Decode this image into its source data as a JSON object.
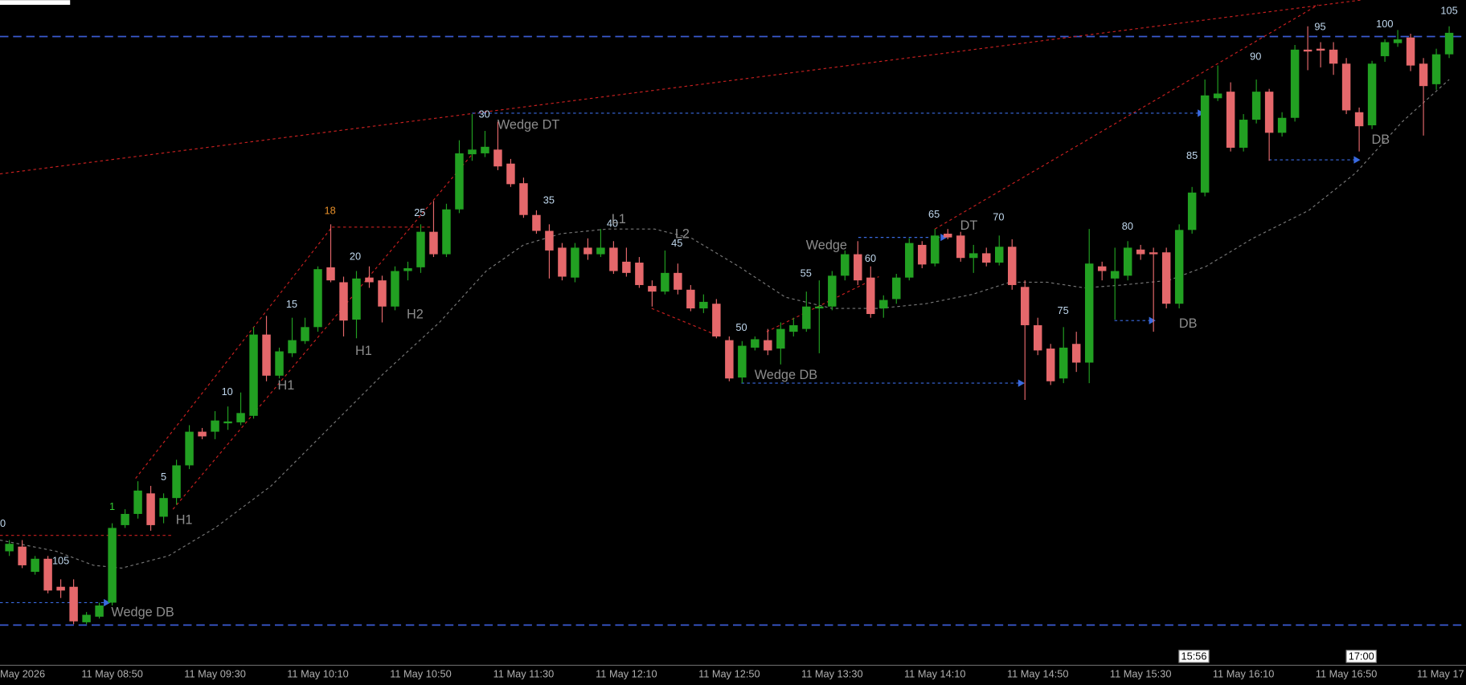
{
  "chart_data": {
    "type": "candlestick",
    "ylim": [
      0,
      712
    ],
    "up_color": "#22a022",
    "down_color": "#e5686b",
    "x_labels": [
      "May 2026",
      "11 May 08:50",
      "11 May 09:30",
      "11 May 10:10",
      "11 May 10:50",
      "11 May 11:30",
      "11 May 12:10",
      "11 May 12:50",
      "11 May 13:30",
      "11 May 14:10",
      "11 May 14:50",
      "11 May 15:30",
      "11 May 16:10",
      "11 May 16:50",
      "11 May 17"
    ],
    "markers": [
      "15:56",
      "17:00"
    ],
    "bar_counts": [
      "0",
      "105",
      "1",
      "5",
      "10",
      "15",
      "18",
      "20",
      "25",
      "30",
      "35",
      "40",
      "45",
      "50",
      "55",
      "60",
      "65",
      "70",
      "75",
      "80",
      "85",
      "90",
      "95",
      "100",
      "105"
    ],
    "pattern_labels": [
      "Wedge DB",
      "H1",
      "H1",
      "H1",
      "H2",
      "Wedge DT",
      "L1",
      "L2",
      "Wedge DB",
      "Wedge",
      "DT",
      "DB",
      "DB"
    ],
    "open": [
      122,
      127,
      100,
      114,
      84,
      84,
      46,
      52,
      67,
      150,
      162,
      184,
      159,
      179,
      214,
      250,
      250,
      259,
      260,
      267,
      354,
      310,
      334,
      347,
      362,
      426,
      410,
      370,
      415,
      412,
      384,
      422,
      426,
      464,
      440,
      488,
      547,
      548,
      552,
      537,
      516,
      482,
      465,
      447,
      415,
      447,
      440,
      447,
      432,
      431,
      406,
      400,
      420,
      402,
      382,
      387,
      348,
      308,
      340,
      348,
      339,
      357,
      360,
      382,
      384,
      417,
      440,
      415,
      382,
      392,
      415,
      450,
      430,
      462,
      460,
      436,
      441,
      431,
      448,
      405,
      364,
      339,
      307,
      344,
      324,
      427,
      414,
      417,
      445,
      442,
      442,
      387,
      466,
      506,
      607,
      614,
      554,
      584,
      614,
      570,
      586,
      659,
      660,
      659,
      644,
      592,
      578,
      652,
      666,
      672,
      644,
      622,
      654
    ],
    "high": [
      134,
      134,
      117,
      117,
      92,
      92,
      57,
      67,
      152,
      167,
      197,
      192,
      184,
      220,
      257,
      254,
      272,
      277,
      292,
      362,
      374,
      340,
      372,
      372,
      427,
      472,
      416,
      422,
      427,
      417,
      427,
      432,
      472,
      497,
      494,
      562,
      590,
      572,
      582,
      542,
      522,
      487,
      472,
      452,
      452,
      457,
      467,
      454,
      447,
      437,
      412,
      444,
      430,
      407,
      397,
      392,
      352,
      347,
      352,
      360,
      367,
      372,
      400,
      412,
      422,
      444,
      454,
      427,
      396,
      419,
      457,
      454,
      467,
      467,
      464,
      450,
      447,
      460,
      456,
      412,
      372,
      344,
      362,
      357,
      467,
      432,
      447,
      454,
      450,
      447,
      447,
      472,
      512,
      627,
      642,
      624,
      590,
      627,
      617,
      592,
      664,
      684,
      667,
      667,
      650,
      597,
      647,
      670,
      680,
      676,
      650,
      660,
      684
    ],
    "low": [
      117,
      104,
      97,
      77,
      72,
      44,
      44,
      50,
      64,
      147,
      157,
      144,
      152,
      172,
      210,
      242,
      242,
      252,
      257,
      264,
      304,
      307,
      330,
      344,
      357,
      410,
      352,
      350,
      404,
      367,
      380,
      412,
      420,
      437,
      437,
      484,
      540,
      544,
      530,
      512,
      479,
      462,
      414,
      412,
      410,
      434,
      437,
      419,
      416,
      404,
      384,
      397,
      397,
      379,
      377,
      350,
      304,
      302,
      337,
      332,
      322,
      352,
      357,
      334,
      380,
      412,
      407,
      372,
      372,
      387,
      412,
      425,
      427,
      456,
      432,
      420,
      427,
      428,
      402,
      284,
      332,
      300,
      302,
      314,
      302,
      412,
      370,
      412,
      434,
      357,
      382,
      382,
      462,
      502,
      604,
      550,
      550,
      580,
      540,
      566,
      582,
      637,
      640,
      632,
      590,
      550,
      574,
      646,
      662,
      636,
      567,
      616,
      650
    ],
    "close": [
      130,
      107,
      114,
      80,
      80,
      47,
      54,
      64,
      147,
      162,
      187,
      150,
      179,
      214,
      250,
      245,
      262,
      261,
      270,
      354,
      310,
      336,
      348,
      362,
      424,
      412,
      369,
      414,
      410,
      384,
      422,
      425,
      464,
      440,
      488,
      548,
      552,
      555,
      534,
      515,
      482,
      465,
      444,
      416,
      447,
      440,
      447,
      422,
      420,
      407,
      400,
      420,
      402,
      382,
      389,
      352,
      307,
      342,
      349,
      337,
      360,
      364,
      384,
      384,
      417,
      440,
      412,
      376,
      391,
      415,
      452,
      429,
      460,
      458,
      436,
      441,
      431,
      448,
      407,
      364,
      337,
      304,
      340,
      324,
      430,
      422,
      422,
      447,
      440,
      440,
      387,
      466,
      506,
      610,
      612,
      554,
      584,
      614,
      570,
      586,
      659,
      657,
      658,
      644,
      594,
      577,
      644,
      667,
      670,
      642,
      620,
      654,
      677
    ]
  }
}
